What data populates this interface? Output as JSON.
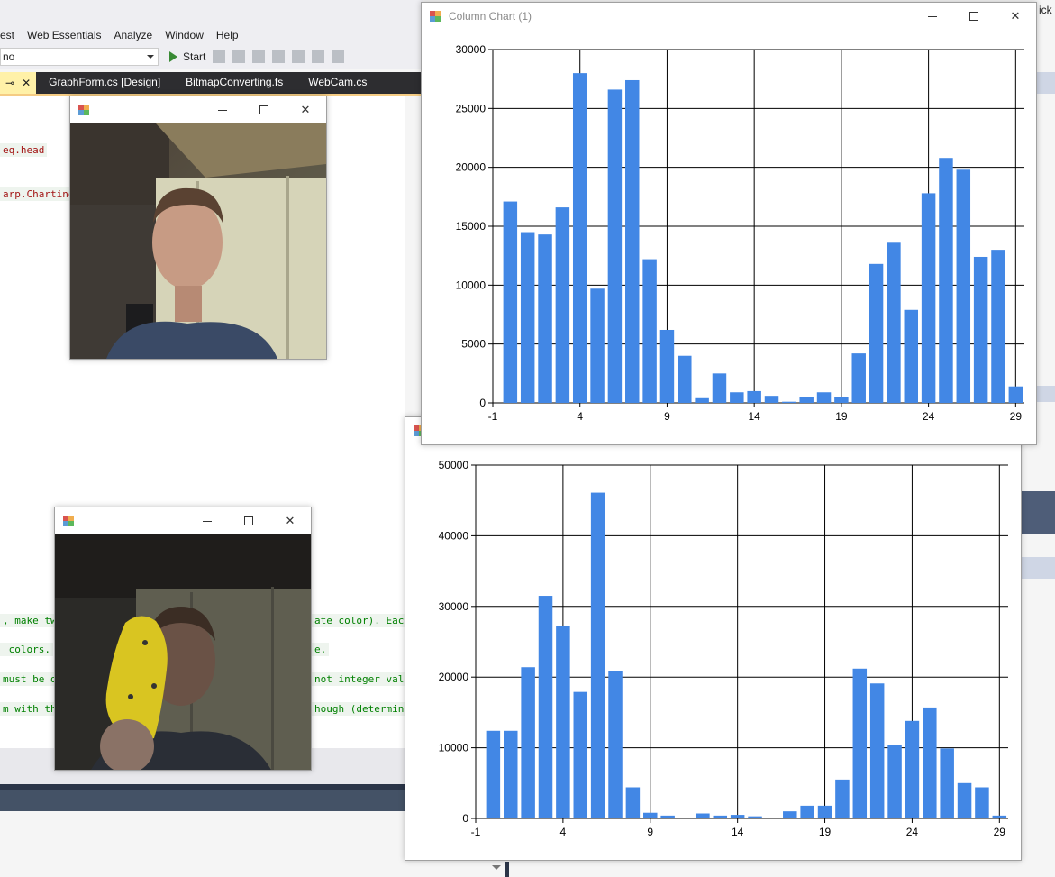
{
  "vs": {
    "menu": [
      "est",
      "Web Essentials",
      "Analyze",
      "Window",
      "Help"
    ],
    "config_value": "no",
    "start_label": "Start",
    "tabs": [
      {
        "label": "",
        "active": true
      },
      {
        "label": "GraphForm.cs [Design]"
      },
      {
        "label": "BitmapConverting.fs"
      },
      {
        "label": "WebCam.cs"
      }
    ],
    "code_lines": [
      "eq.head",
      "arp.Charting",
      ", make tw",
      "ate color). Each",
      " colors.",
      "e.",
      "must be o",
      "not integer valu",
      "m with th",
      "hough (determine"
    ],
    "right_text": "ick"
  },
  "chart1": {
    "title": "Column Chart (1)",
    "chart_data": {
      "type": "bar",
      "categories": [
        0,
        1,
        2,
        3,
        4,
        5,
        6,
        7,
        8,
        9,
        10,
        11,
        12,
        13,
        14,
        15,
        16,
        17,
        18,
        19,
        20,
        21,
        22,
        23,
        24,
        25,
        26,
        27,
        28,
        29
      ],
      "values": [
        17100,
        14500,
        14300,
        16600,
        28000,
        9700,
        26600,
        27400,
        12200,
        6200,
        4000,
        400,
        2500,
        900,
        1000,
        600,
        100,
        500,
        900,
        500,
        4200,
        11800,
        13600,
        7900,
        17800,
        20800,
        19800,
        12400,
        13000,
        1400
      ],
      "xlim": [
        -1,
        29.5
      ],
      "ylim": [
        0,
        30000
      ],
      "xticks": [
        -1,
        4,
        9,
        14,
        19,
        24,
        29
      ],
      "yticks": [
        0,
        5000,
        10000,
        15000,
        20000,
        25000,
        30000
      ],
      "xlabel": "",
      "ylabel": "",
      "grid": true,
      "color": "#4287e5"
    }
  },
  "chart2": {
    "title": "",
    "chart_data": {
      "type": "bar",
      "categories": [
        0,
        1,
        2,
        3,
        4,
        5,
        6,
        7,
        8,
        9,
        10,
        11,
        12,
        13,
        14,
        15,
        16,
        17,
        18,
        19,
        20,
        21,
        22,
        23,
        24,
        25,
        26,
        27,
        28,
        29
      ],
      "values": [
        12400,
        12400,
        21400,
        31500,
        27200,
        17900,
        46100,
        20900,
        4400,
        800,
        400,
        100,
        700,
        400,
        500,
        300,
        100,
        1000,
        1800,
        1800,
        5500,
        21200,
        19100,
        10400,
        13800,
        15700,
        9900,
        5000,
        4400,
        400
      ],
      "xlim": [
        -1,
        29.5
      ],
      "ylim": [
        0,
        50000
      ],
      "xticks": [
        -1,
        4,
        9,
        14,
        19,
        24,
        29
      ],
      "yticks": [
        0,
        10000,
        20000,
        30000,
        40000,
        50000
      ],
      "xlabel": "",
      "ylabel": "",
      "grid": true,
      "color": "#4287e5"
    }
  }
}
